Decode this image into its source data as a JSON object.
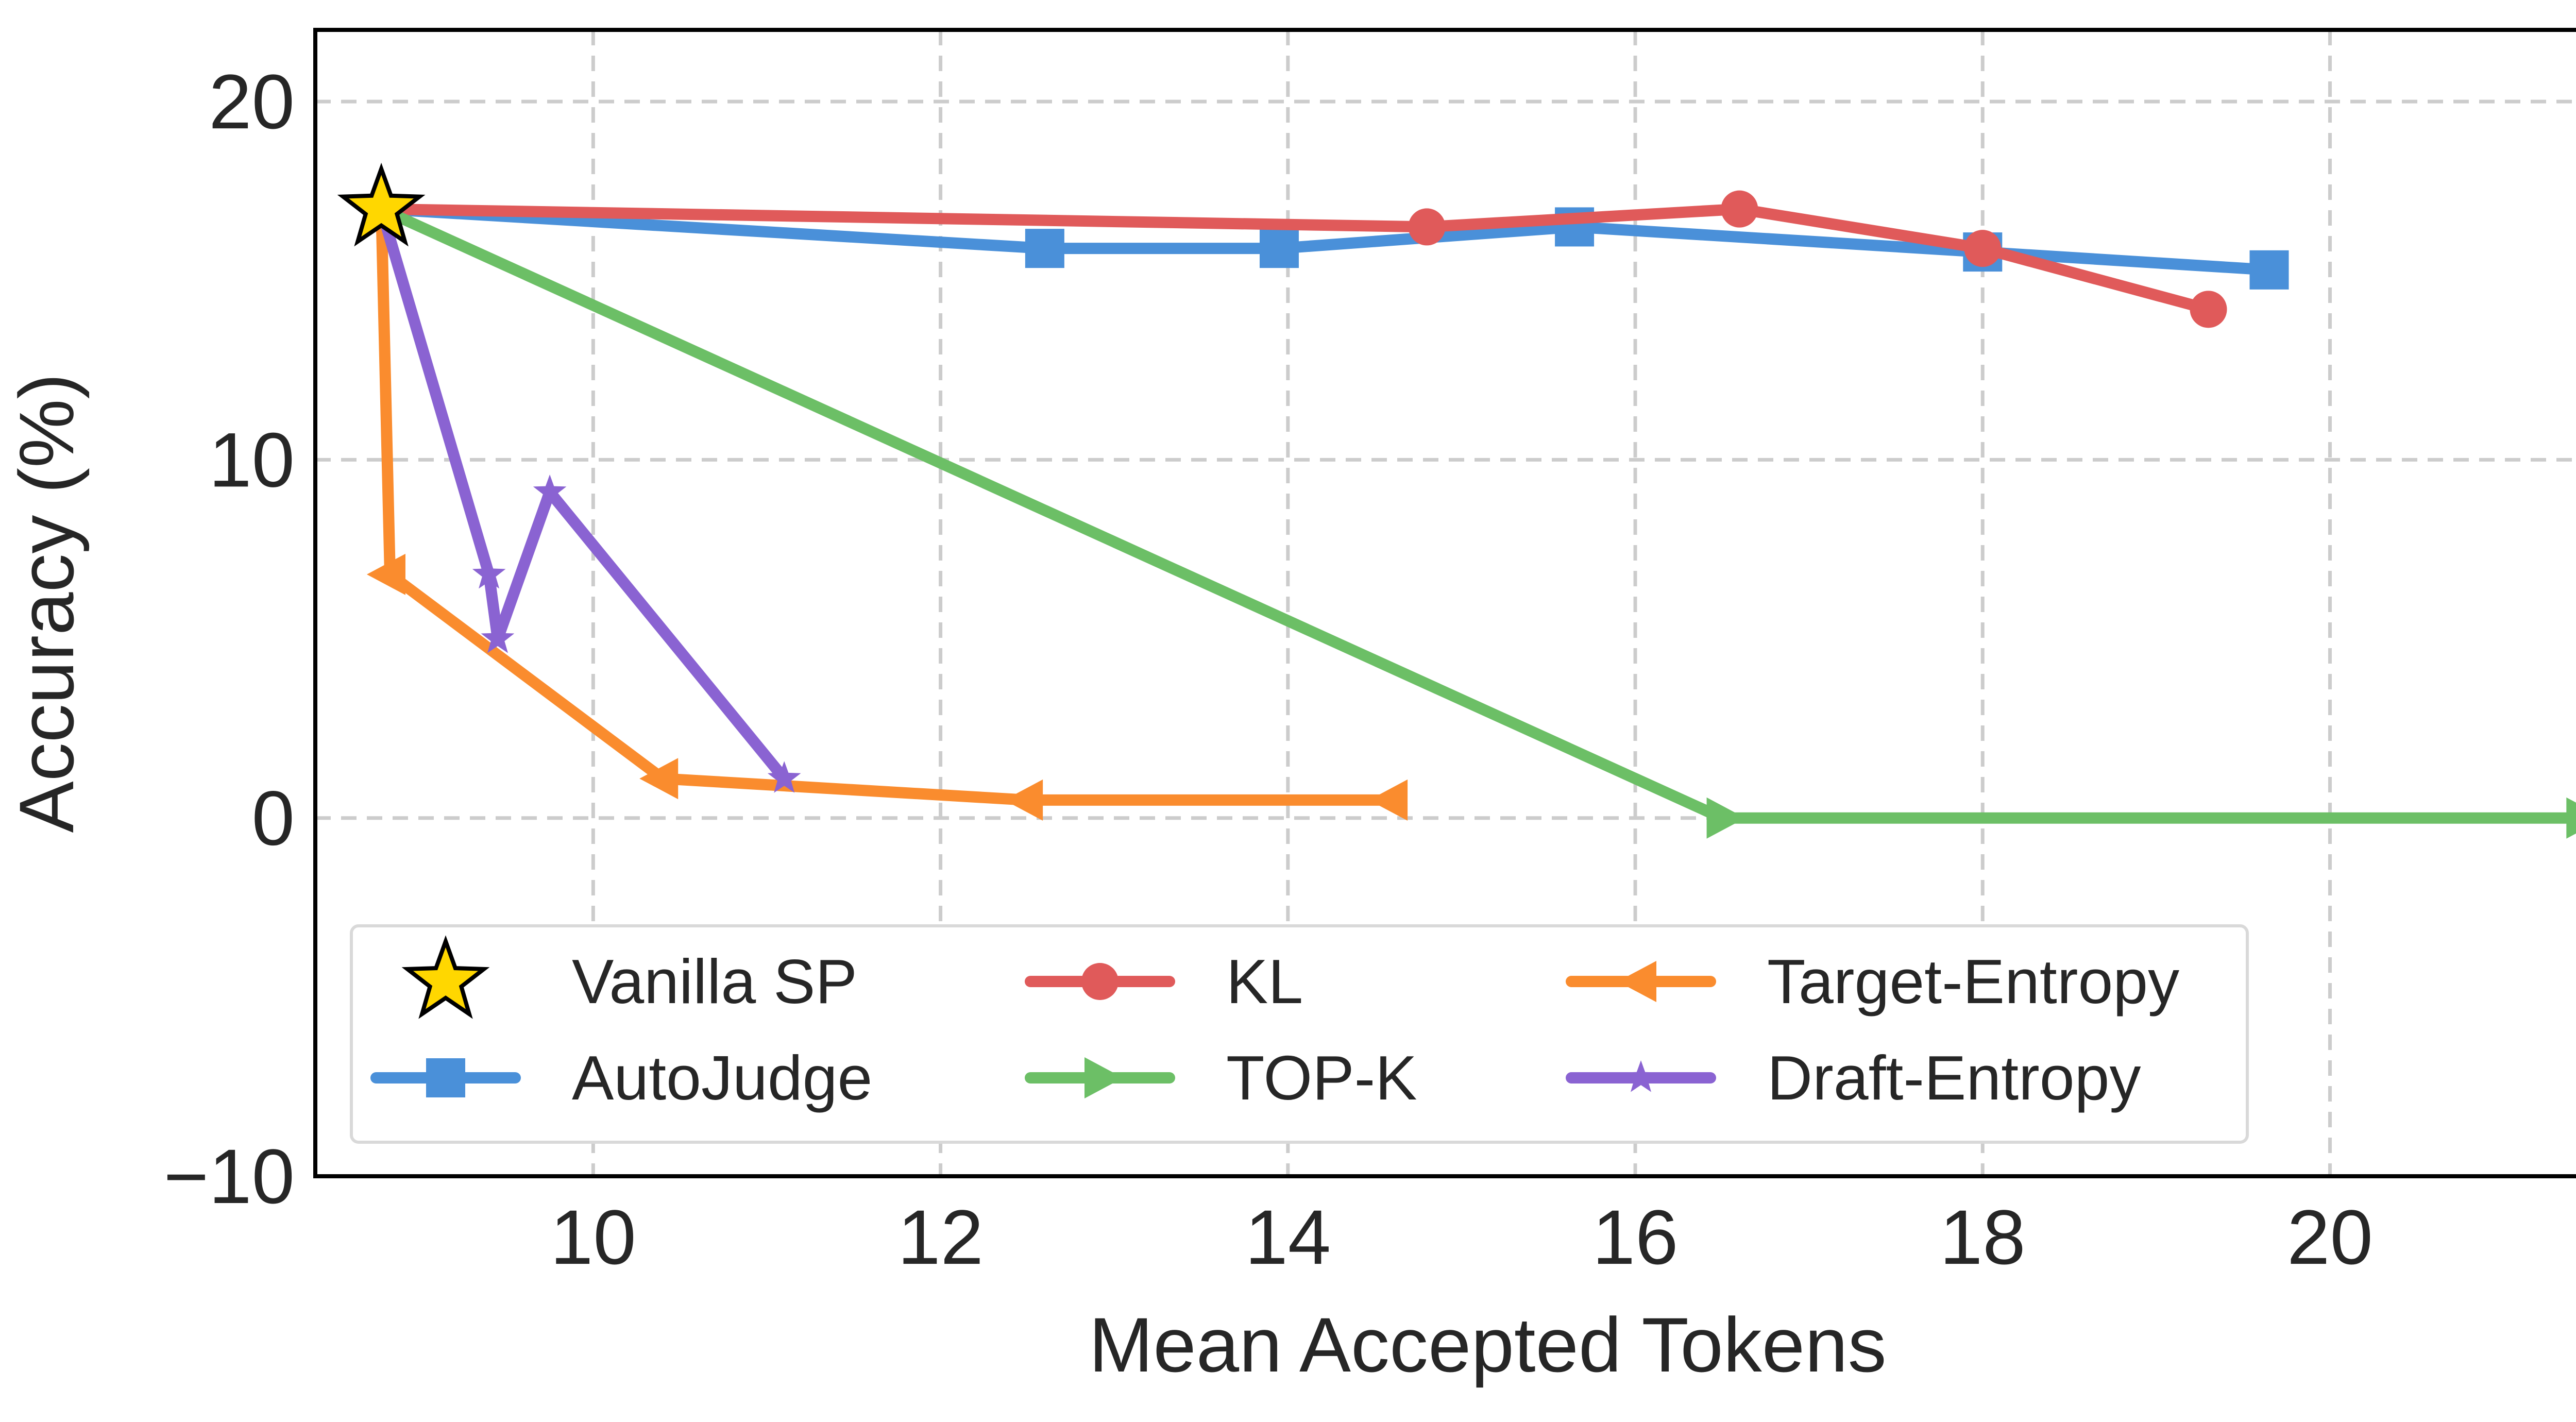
{
  "chart_data": {
    "type": "line",
    "title": "",
    "xlabel": "Mean Accepted Tokens",
    "ylabel": "Accuracy (%)",
    "xlim": [
      8.4,
      21.9
    ],
    "ylim": [
      -10,
      22
    ],
    "xticks": [
      10,
      12,
      14,
      16,
      18,
      20
    ],
    "xtick_labels": [
      "10",
      "12",
      "14",
      "16",
      "18",
      "20"
    ],
    "yticks": [
      -10,
      0,
      10,
      20
    ],
    "ytick_labels": [
      "−10",
      "0",
      "10",
      "20"
    ],
    "grid": true,
    "legend_position": "lower-left",
    "legend_columns": 3,
    "series": [
      {
        "name": "Vanilla SP",
        "color": "#FFD700",
        "marker": "star-large",
        "x": [
          8.78
        ],
        "y": [
          17.0
        ]
      },
      {
        "name": "AutoJudge",
        "color": "#4A90D9",
        "marker": "square",
        "x": [
          8.78,
          12.6,
          13.95,
          15.65,
          18.0,
          19.65
        ],
        "y": [
          17.0,
          15.9,
          15.9,
          16.5,
          15.8,
          15.3
        ]
      },
      {
        "name": "KL",
        "color": "#E05A5A",
        "marker": "circle",
        "x": [
          8.78,
          14.8,
          16.6,
          18.0,
          19.3
        ],
        "y": [
          17.0,
          16.5,
          17.0,
          15.9,
          14.2
        ]
      },
      {
        "name": "TOP-K",
        "color": "#6CBF66",
        "marker": "triangle-right",
        "x": [
          8.78,
          16.5,
          21.45
        ],
        "y": [
          17.0,
          0.0,
          0.0
        ]
      },
      {
        "name": "Target-Entropy",
        "color": "#FA8C2E",
        "marker": "triangle-left",
        "x": [
          8.78,
          8.83,
          10.4,
          12.5,
          14.6
        ],
        "y": [
          17.0,
          6.8,
          1.1,
          0.5,
          0.5
        ]
      },
      {
        "name": "Draft-Entropy",
        "color": "#8A63D2",
        "marker": "star",
        "x": [
          8.78,
          9.4,
          9.45,
          9.75,
          11.1
        ],
        "y": [
          17.0,
          6.8,
          5.0,
          9.1,
          1.1
        ]
      }
    ],
    "legend_order": [
      "Vanilla SP",
      "AutoJudge",
      "KL",
      "TOP-K",
      "Target-Entropy",
      "Draft-Entropy"
    ]
  }
}
